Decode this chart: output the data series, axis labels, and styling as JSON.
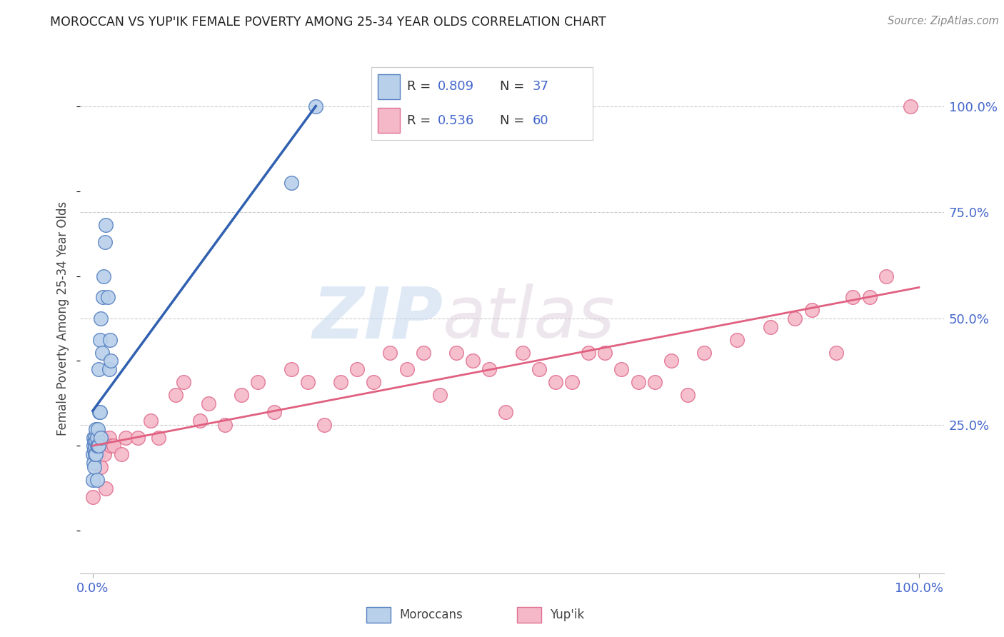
{
  "title": "MOROCCAN VS YUP'IK FEMALE POVERTY AMONG 25-34 YEAR OLDS CORRELATION CHART",
  "source": "Source: ZipAtlas.com",
  "ylabel": "Female Poverty Among 25-34 Year Olds",
  "moroccan_R": 0.809,
  "moroccan_N": 37,
  "yupik_R": 0.536,
  "yupik_N": 60,
  "watermark_zip": "ZIP",
  "watermark_atlas": "atlas",
  "moroccan_color": "#b8d0ea",
  "moroccan_edge_color": "#5580c0",
  "moroccan_line_color": "#3060b0",
  "yupik_color": "#f5b8c8",
  "yupik_edge_color": "#e07090",
  "yupik_line_color": "#e06080",
  "right_tick_color": "#4466cc",
  "bottom_tick_color": "#4466cc",
  "grid_color": "#cccccc",
  "background_color": "#ffffff",
  "title_color": "#222222",
  "axis_label_color": "#444444",
  "source_color": "#888888",
  "moroccan_x": [
    0.0,
    0.0,
    0.001,
    0.001,
    0.001,
    0.002,
    0.002,
    0.002,
    0.003,
    0.003,
    0.003,
    0.004,
    0.004,
    0.004,
    0.005,
    0.005,
    0.005,
    0.006,
    0.006,
    0.007,
    0.007,
    0.008,
    0.009,
    0.009,
    0.01,
    0.01,
    0.011,
    0.012,
    0.013,
    0.015,
    0.016,
    0.018,
    0.02,
    0.021,
    0.022,
    0.24,
    0.27
  ],
  "moroccan_y": [
    0.18,
    0.12,
    0.2,
    0.22,
    0.16,
    0.19,
    0.21,
    0.15,
    0.18,
    0.22,
    0.2,
    0.18,
    0.21,
    0.24,
    0.12,
    0.2,
    0.22,
    0.2,
    0.24,
    0.2,
    0.38,
    0.28,
    0.28,
    0.45,
    0.22,
    0.5,
    0.42,
    0.55,
    0.6,
    0.68,
    0.72,
    0.55,
    0.38,
    0.45,
    0.4,
    0.82,
    1.0
  ],
  "yupik_x": [
    0.0,
    0.005,
    0.007,
    0.008,
    0.009,
    0.01,
    0.012,
    0.014,
    0.016,
    0.02,
    0.022,
    0.025,
    0.035,
    0.04,
    0.055,
    0.07,
    0.08,
    0.1,
    0.11,
    0.13,
    0.14,
    0.16,
    0.18,
    0.2,
    0.22,
    0.24,
    0.26,
    0.28,
    0.3,
    0.32,
    0.34,
    0.36,
    0.38,
    0.4,
    0.42,
    0.44,
    0.46,
    0.48,
    0.5,
    0.52,
    0.54,
    0.56,
    0.58,
    0.6,
    0.62,
    0.64,
    0.66,
    0.68,
    0.7,
    0.72,
    0.74,
    0.78,
    0.82,
    0.85,
    0.87,
    0.9,
    0.92,
    0.94,
    0.96,
    0.99
  ],
  "yupik_y": [
    0.08,
    0.2,
    0.18,
    0.22,
    0.2,
    0.15,
    0.22,
    0.18,
    0.1,
    0.22,
    0.2,
    0.2,
    0.18,
    0.22,
    0.22,
    0.26,
    0.22,
    0.32,
    0.35,
    0.26,
    0.3,
    0.25,
    0.32,
    0.35,
    0.28,
    0.38,
    0.35,
    0.25,
    0.35,
    0.38,
    0.35,
    0.42,
    0.38,
    0.42,
    0.32,
    0.42,
    0.4,
    0.38,
    0.28,
    0.42,
    0.38,
    0.35,
    0.35,
    0.42,
    0.42,
    0.38,
    0.35,
    0.35,
    0.4,
    0.32,
    0.42,
    0.45,
    0.48,
    0.5,
    0.52,
    0.42,
    0.55,
    0.55,
    0.6,
    1.0
  ],
  "xlim": [
    -0.015,
    1.03
  ],
  "ylim": [
    -0.1,
    1.1
  ],
  "right_ytick_positions": [
    0.25,
    0.5,
    0.75,
    1.0
  ],
  "right_ytick_labels": [
    "25.0%",
    "50.0%",
    "75.0%",
    "100.0%"
  ]
}
